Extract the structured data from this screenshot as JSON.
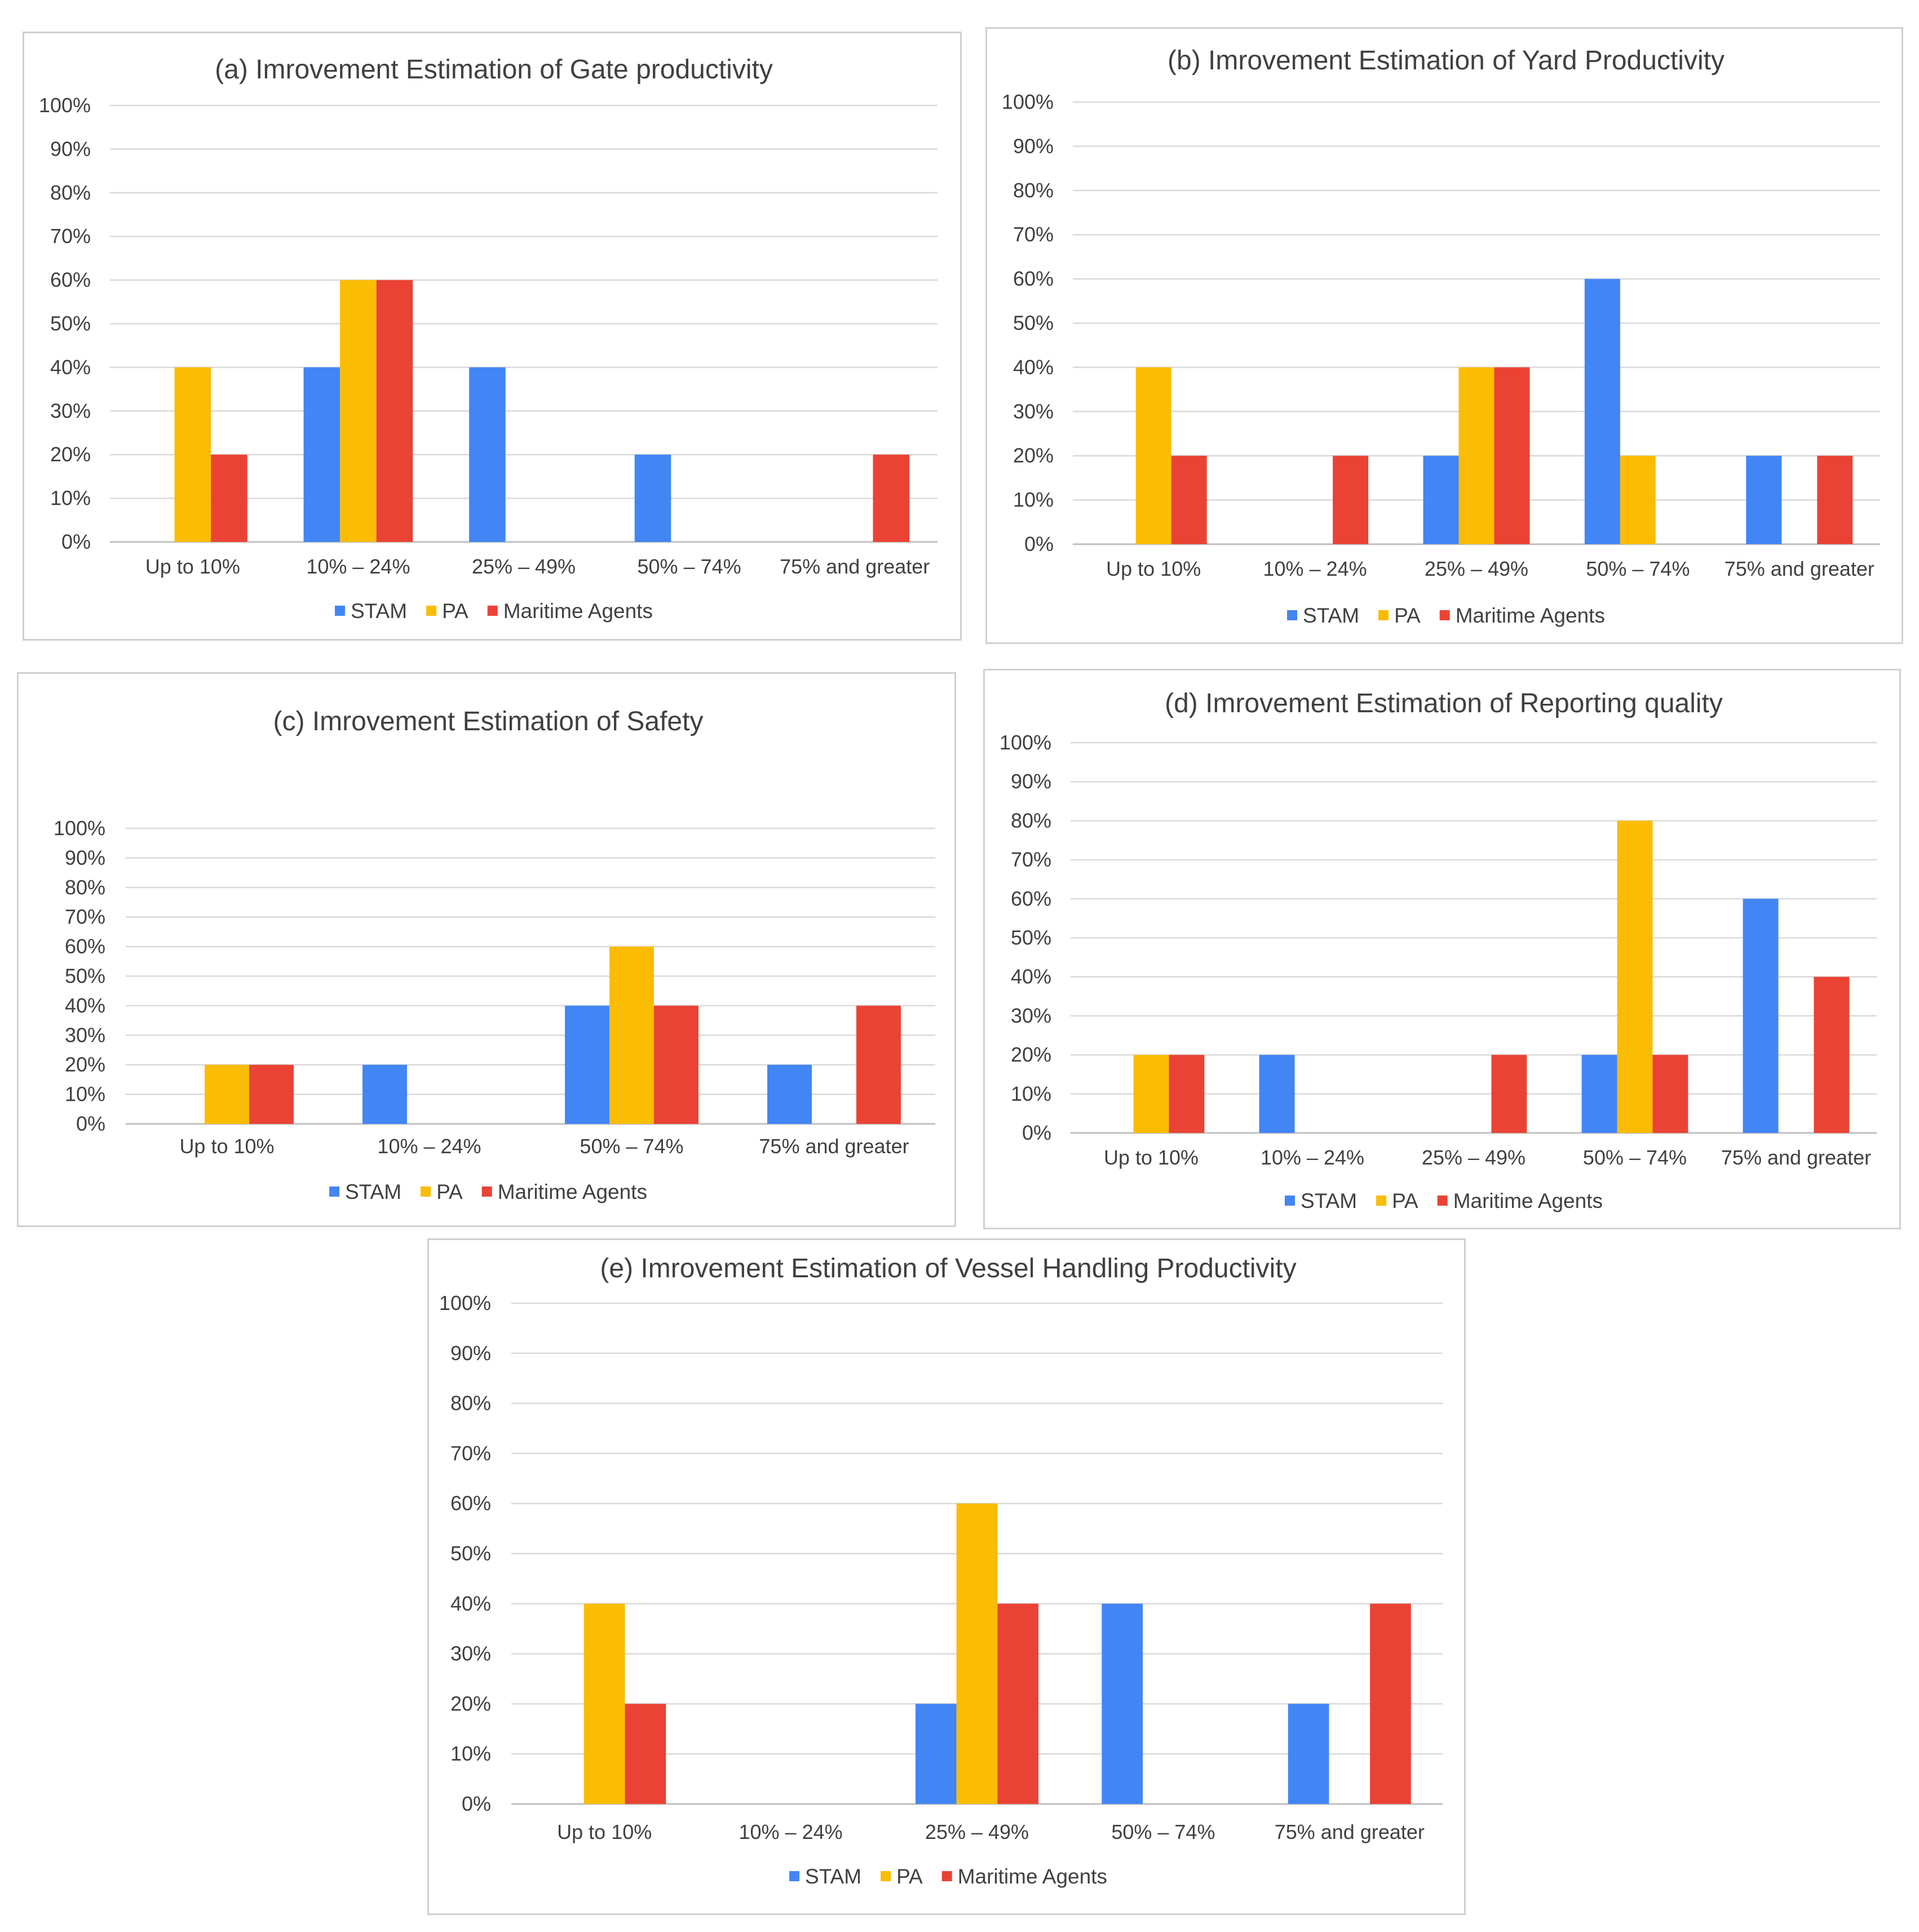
{
  "colors": {
    "STAM": "#4285f4",
    "PA": "#fbbc04",
    "Maritime Agents": "#ea4335"
  },
  "legend": [
    "STAM",
    "PA",
    "Maritime Agents"
  ],
  "y_ticks": [
    "0%",
    "10%",
    "20%",
    "30%",
    "40%",
    "50%",
    "60%",
    "70%",
    "80%",
    "90%",
    "100%"
  ],
  "chart_data": [
    {
      "id": "a",
      "type": "bar",
      "title": "(a) Imrovement Estimation of Gate productivity",
      "xlabel": "",
      "ylabel": "",
      "ylim": [
        0,
        100
      ],
      "categories": [
        "Up to 10%",
        "10% – 24%",
        "25% – 49%",
        "50% – 74%",
        "75% and greater"
      ],
      "series": [
        {
          "name": "STAM",
          "values": [
            0,
            40,
            40,
            20,
            0
          ]
        },
        {
          "name": "PA",
          "values": [
            40,
            60,
            0,
            0,
            0
          ]
        },
        {
          "name": "Maritime Agents",
          "values": [
            20,
            60,
            0,
            0,
            20
          ]
        }
      ]
    },
    {
      "id": "b",
      "type": "bar",
      "title": "(b) Imrovement Estimation of Yard Productivity",
      "xlabel": "",
      "ylabel": "",
      "ylim": [
        0,
        100
      ],
      "categories": [
        "Up to 10%",
        "10% – 24%",
        "25% – 49%",
        "50% – 74%",
        "75% and greater"
      ],
      "series": [
        {
          "name": "STAM",
          "values": [
            0,
            0,
            20,
            60,
            20
          ]
        },
        {
          "name": "PA",
          "values": [
            40,
            0,
            40,
            20,
            0
          ]
        },
        {
          "name": "Maritime Agents",
          "values": [
            20,
            20,
            40,
            0,
            20
          ]
        }
      ]
    },
    {
      "id": "c",
      "type": "bar",
      "title": "(c) Imrovement Estimation of Safety",
      "xlabel": "",
      "ylabel": "",
      "ylim": [
        0,
        100
      ],
      "categories": [
        "Up to 10%",
        "10% – 24%",
        "50% – 74%",
        "75% and greater"
      ],
      "series": [
        {
          "name": "STAM",
          "values": [
            0,
            20,
            40,
            20
          ]
        },
        {
          "name": "PA",
          "values": [
            20,
            0,
            60,
            0
          ]
        },
        {
          "name": "Maritime Agents",
          "values": [
            20,
            0,
            40,
            40
          ]
        }
      ]
    },
    {
      "id": "d",
      "type": "bar",
      "title": "(d) Imrovement Estimation of Reporting quality",
      "xlabel": "",
      "ylabel": "",
      "ylim": [
        0,
        100
      ],
      "categories": [
        "Up to 10%",
        "10% – 24%",
        "25% – 49%",
        "50% – 74%",
        "75% and greater"
      ],
      "series": [
        {
          "name": "STAM",
          "values": [
            0,
            20,
            0,
            20,
            60
          ]
        },
        {
          "name": "PA",
          "values": [
            20,
            0,
            0,
            80,
            0
          ]
        },
        {
          "name": "Maritime Agents",
          "values": [
            20,
            0,
            20,
            20,
            40
          ]
        }
      ]
    },
    {
      "id": "e",
      "type": "bar",
      "title": "(e) Imrovement Estimation of Vessel Handling Productivity",
      "xlabel": "",
      "ylabel": "",
      "ylim": [
        0,
        100
      ],
      "categories": [
        "Up to 10%",
        "10% – 24%",
        "25% – 49%",
        "50% – 74%",
        "75% and greater"
      ],
      "series": [
        {
          "name": "STAM",
          "values": [
            0,
            0,
            20,
            40,
            20
          ]
        },
        {
          "name": "PA",
          "values": [
            40,
            0,
            60,
            0,
            0
          ]
        },
        {
          "name": "Maritime Agents",
          "values": [
            20,
            0,
            40,
            0,
            40
          ]
        }
      ]
    }
  ]
}
